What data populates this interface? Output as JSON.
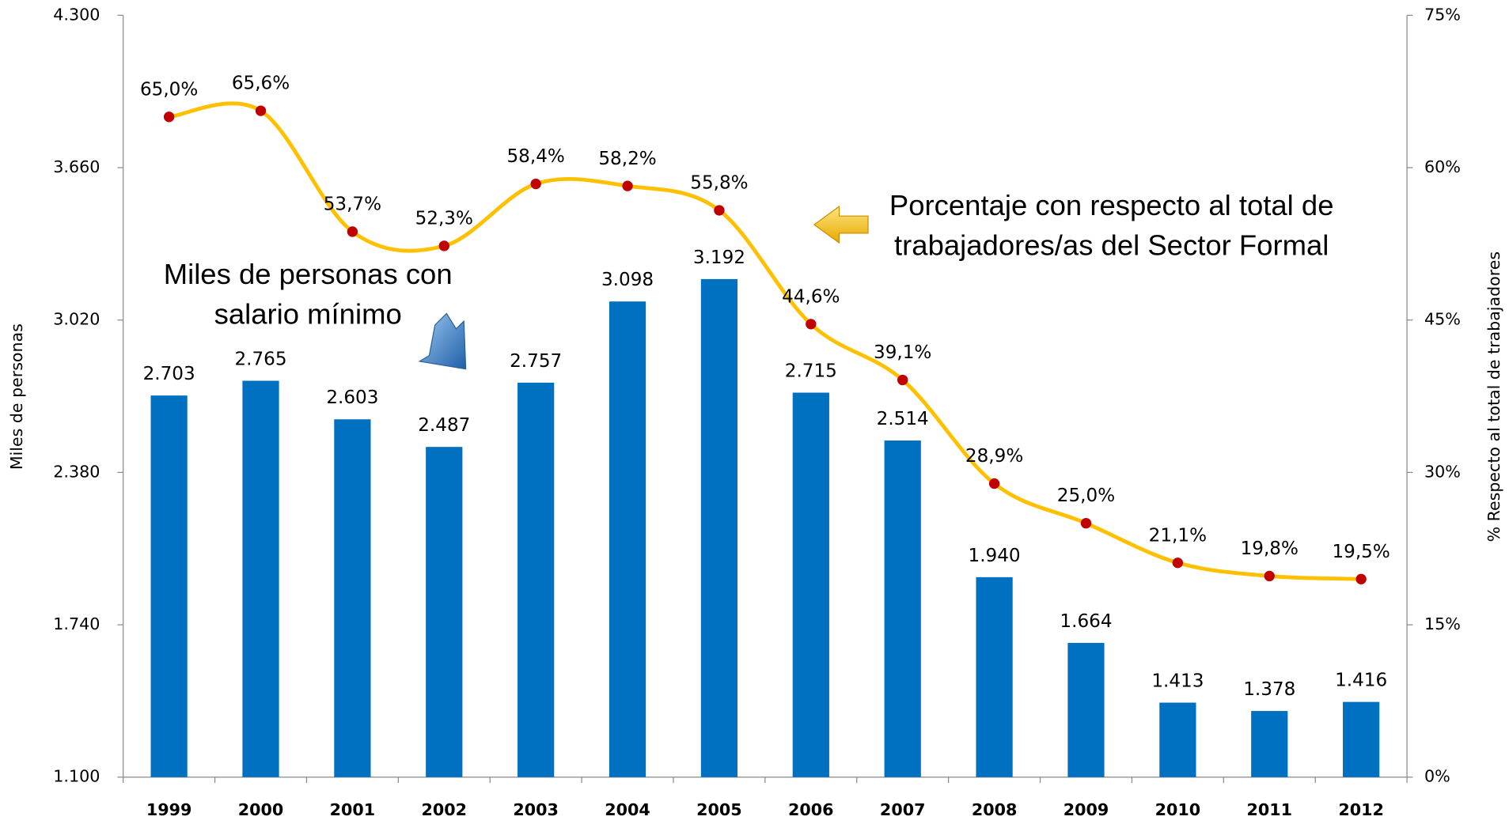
{
  "chart_data": {
    "type": "bar_line",
    "categories": [
      "1999",
      "2000",
      "2001",
      "2002",
      "2003",
      "2004",
      "2005",
      "2006",
      "2007",
      "2008",
      "2009",
      "2010",
      "2011",
      "2012"
    ],
    "series": [
      {
        "name": "Miles de personas",
        "color": "#0070C0",
        "type": "bar",
        "values": [
          2703,
          2765,
          2603,
          2487,
          2757,
          3098,
          3192,
          2715,
          2514,
          1940,
          1664,
          1413,
          1378,
          1416
        ],
        "value_labels": [
          "2.703",
          "2.765",
          "2.603",
          "2.487",
          "2.757",
          "3.098",
          "3.192",
          "2.715",
          "2.514",
          "1.940",
          "1.664",
          "1.413",
          "1.378",
          "1.416"
        ]
      },
      {
        "name": "% Respecto al total de trabajadores",
        "color": "#FFC000",
        "marker_color": "#C00000",
        "type": "line",
        "axis": "y2",
        "values": [
          65.0,
          65.6,
          53.7,
          52.3,
          58.4,
          58.2,
          55.8,
          44.6,
          39.1,
          28.9,
          25.0,
          21.1,
          19.8,
          19.5
        ],
        "value_labels": [
          "65,0%",
          "65,6%",
          "53,7%",
          "52,3%",
          "58,4%",
          "58,2%",
          "55,8%",
          "44,6%",
          "39,1%",
          "28,9%",
          "25,0%",
          "21,1%",
          "19,8%",
          "19,5%"
        ]
      }
    ],
    "ylabel": "Miles de personas",
    "y2label": "% Respecto al total de trabajadores",
    "ylim": [
      1100,
      4300
    ],
    "yticks": [
      {
        "value": 1100,
        "label": "1.100"
      },
      {
        "value": 1740,
        "label": "1.740"
      },
      {
        "value": 2380,
        "label": "2.380"
      },
      {
        "value": 3020,
        "label": "3.020"
      },
      {
        "value": 3660,
        "label": "3.660"
      },
      {
        "value": 4300,
        "label": "4.300"
      }
    ],
    "y2lim": [
      0,
      75
    ],
    "y2ticks": [
      {
        "value": 0,
        "label": "0%"
      },
      {
        "value": 15,
        "label": "15%"
      },
      {
        "value": 30,
        "label": "30%"
      },
      {
        "value": 45,
        "label": "45%"
      },
      {
        "value": 60,
        "label": "60%"
      },
      {
        "value": 75,
        "label": "75%"
      }
    ],
    "annotations": [
      [
        "Miles de personas con",
        "salario mínimo"
      ],
      [
        "Porcentaje con respecto al total de",
        "trabajadores/as del Sector Formal"
      ]
    ]
  }
}
